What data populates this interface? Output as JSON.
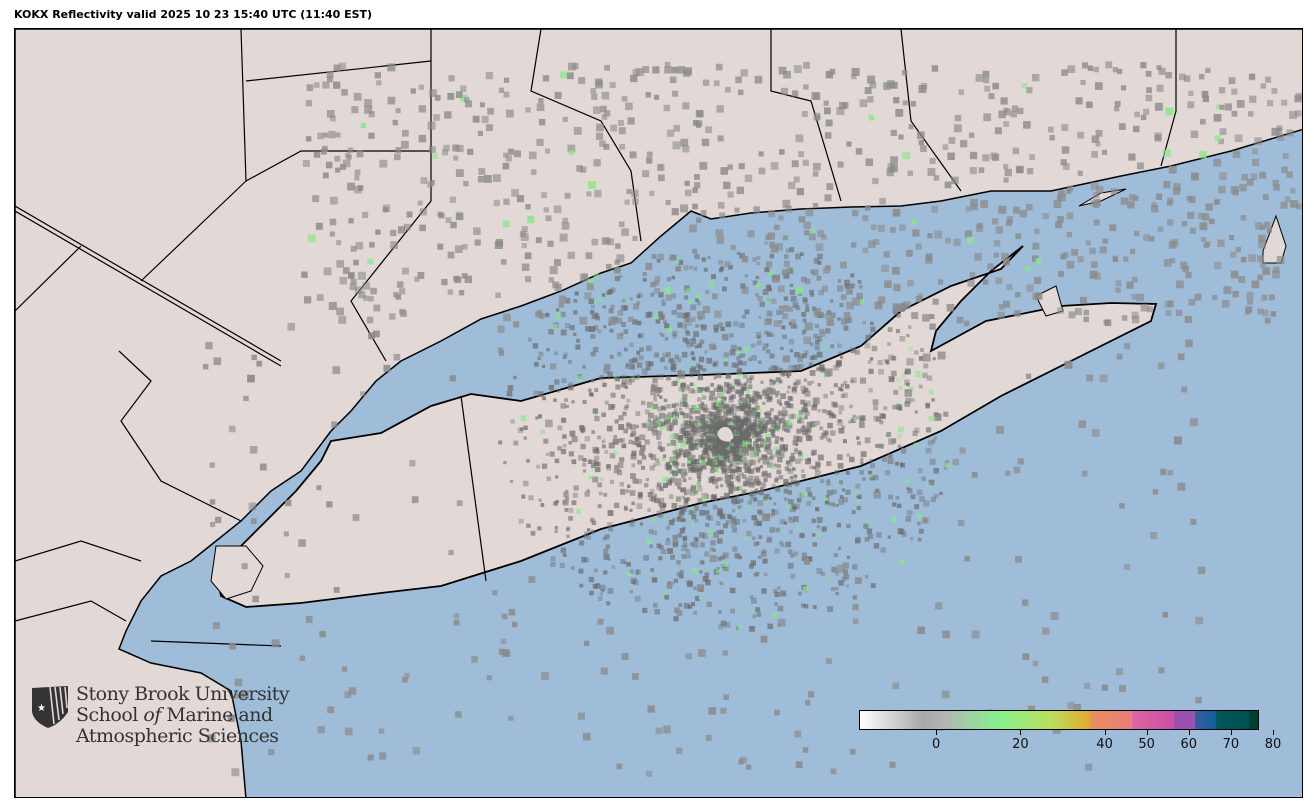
{
  "title": "KOKX Reflectivity valid 2025 10 23 15:40 UTC (11:40 EST)",
  "map": {
    "colors": {
      "water": "#9fbcd8",
      "land": "#e2d8d6",
      "border": "#000000",
      "echo_gray": "#808080",
      "echo_green": "#88e888"
    }
  },
  "logo": {
    "line1": "Stony Brook University",
    "line2a": "School ",
    "line2b": "of",
    "line2c": " Marine and",
    "line3": "Atmospheric Sciences",
    "icon": "shield-star-icon"
  },
  "colorbar": {
    "range": [
      -15,
      80
    ],
    "ticks": [
      0,
      20,
      40,
      50,
      60,
      70,
      80
    ],
    "tick_labels": [
      "0",
      "20",
      "40",
      "50",
      "60",
      "70",
      "80"
    ],
    "stops": [
      {
        "v": -15,
        "c": "#ffffff"
      },
      {
        "v": 0,
        "c": "#a8a8a8"
      },
      {
        "v": 5,
        "c": "#b4b4b4"
      },
      {
        "v": 18,
        "c": "#88f090"
      },
      {
        "v": 30,
        "c": "#b8e060"
      },
      {
        "v": 40,
        "c": "#e0aa30"
      },
      {
        "v": 40.01,
        "c": "#e8905e"
      },
      {
        "v": 50,
        "c": "#e87c7c"
      },
      {
        "v": 50.01,
        "c": "#e062a0"
      },
      {
        "v": 60,
        "c": "#c850a8"
      },
      {
        "v": 60.01,
        "c": "#9c50b0"
      },
      {
        "v": 65,
        "c": "#9c50b0"
      },
      {
        "v": 65.01,
        "c": "#3a5aa0"
      },
      {
        "v": 70,
        "c": "#10609c"
      },
      {
        "v": 70.01,
        "c": "#005858"
      },
      {
        "v": 78,
        "c": "#005050"
      },
      {
        "v": 78.01,
        "c": "#004030"
      },
      {
        "v": 80,
        "c": "#004030"
      }
    ]
  }
}
